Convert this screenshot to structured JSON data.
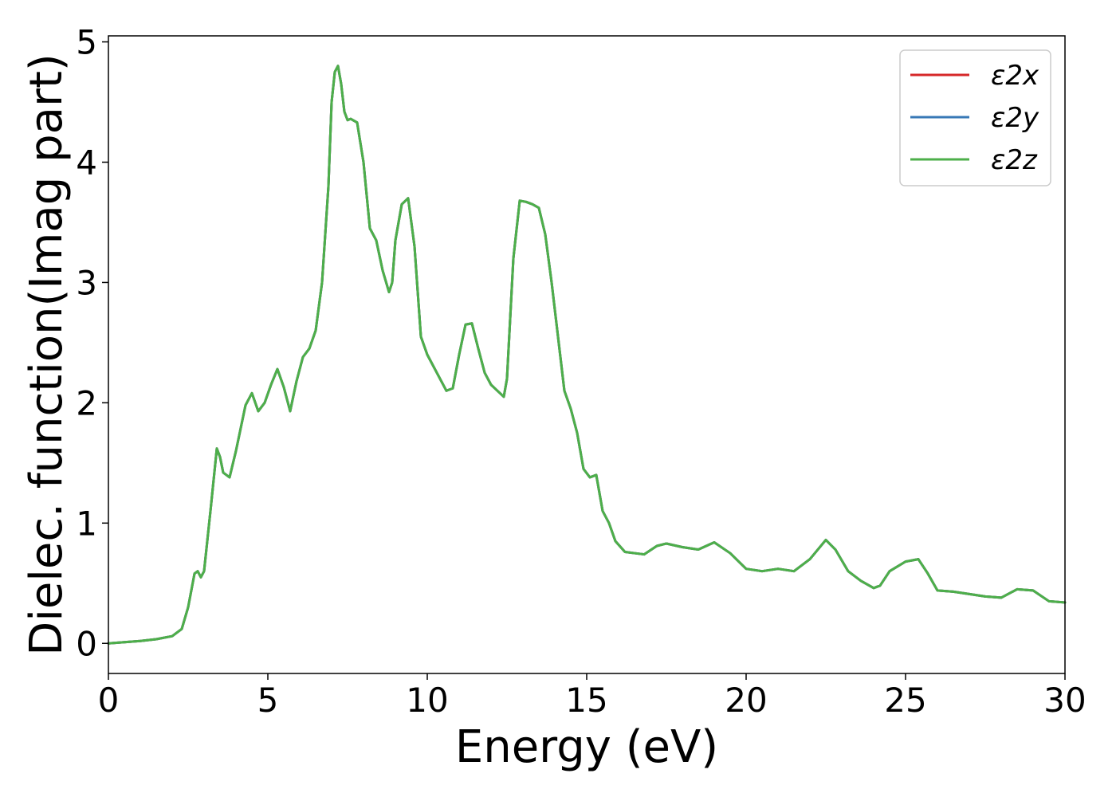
{
  "chart_data": {
    "type": "line",
    "title": "",
    "xlabel": "Energy (eV)",
    "ylabel": "Dielec. function(Imag part)",
    "xlim": [
      0,
      30
    ],
    "ylim": [
      -0.25,
      5.05
    ],
    "xticks": [
      0,
      5,
      10,
      15,
      20,
      25,
      30
    ],
    "yticks": [
      0,
      1,
      2,
      3,
      4,
      5
    ],
    "grid": false,
    "legend_position": "top-right",
    "series": [
      {
        "name": "ε2x",
        "color": "#d62728",
        "x": [
          0,
          1.0,
          1.5,
          2.0,
          2.3,
          2.5,
          2.7,
          2.8,
          2.9,
          3.0,
          3.2,
          3.4,
          3.5,
          3.6,
          3.8,
          4.0,
          4.3,
          4.5,
          4.7,
          4.9,
          5.1,
          5.3,
          5.5,
          5.7,
          5.9,
          6.1,
          6.3,
          6.5,
          6.7,
          6.9,
          7.0,
          7.1,
          7.2,
          7.3,
          7.4,
          7.5,
          7.6,
          7.8,
          8.0,
          8.2,
          8.4,
          8.6,
          8.8,
          8.9,
          9.0,
          9.2,
          9.4,
          9.6,
          9.8,
          10.0,
          10.3,
          10.6,
          10.8,
          11.0,
          11.2,
          11.4,
          11.6,
          11.8,
          12.0,
          12.2,
          12.4,
          12.5,
          12.7,
          12.9,
          13.1,
          13.3,
          13.5,
          13.7,
          13.9,
          14.1,
          14.3,
          14.5,
          14.7,
          14.9,
          15.1,
          15.3,
          15.5,
          15.7,
          15.9,
          16.2,
          16.5,
          16.8,
          17.2,
          17.5,
          18.0,
          18.5,
          19.0,
          19.5,
          20.0,
          20.5,
          21.0,
          21.5,
          22.0,
          22.5,
          22.8,
          23.2,
          23.6,
          24.0,
          24.2,
          24.5,
          25.0,
          25.4,
          25.7,
          26.0,
          26.5,
          27.0,
          27.5,
          28.0,
          28.5,
          29.0,
          29.5,
          30.0
        ],
        "y": [
          0.0,
          0.02,
          0.035,
          0.06,
          0.12,
          0.3,
          0.58,
          0.6,
          0.55,
          0.6,
          1.1,
          1.62,
          1.55,
          1.42,
          1.38,
          1.6,
          1.98,
          2.08,
          1.93,
          2.0,
          2.15,
          2.28,
          2.13,
          1.93,
          2.18,
          2.38,
          2.45,
          2.6,
          3.0,
          3.8,
          4.5,
          4.75,
          4.8,
          4.65,
          4.42,
          4.35,
          4.36,
          4.33,
          4.0,
          3.45,
          3.35,
          3.1,
          2.92,
          3.0,
          3.35,
          3.65,
          3.7,
          3.3,
          2.55,
          2.4,
          2.25,
          2.1,
          2.12,
          2.4,
          2.65,
          2.66,
          2.45,
          2.25,
          2.15,
          2.1,
          2.05,
          2.2,
          3.2,
          3.68,
          3.67,
          3.65,
          3.62,
          3.4,
          3.0,
          2.55,
          2.1,
          1.95,
          1.75,
          1.45,
          1.38,
          1.4,
          1.1,
          1.0,
          0.85,
          0.76,
          0.75,
          0.74,
          0.81,
          0.83,
          0.8,
          0.78,
          0.84,
          0.75,
          0.62,
          0.6,
          0.62,
          0.6,
          0.7,
          0.86,
          0.78,
          0.6,
          0.52,
          0.46,
          0.48,
          0.6,
          0.68,
          0.7,
          0.58,
          0.44,
          0.43,
          0.41,
          0.39,
          0.38,
          0.45,
          0.44,
          0.35,
          0.34
        ]
      },
      {
        "name": "ε2y",
        "color": "#3778b6",
        "x": [
          0,
          1.0,
          1.5,
          2.0,
          2.3,
          2.5,
          2.7,
          2.8,
          2.9,
          3.0,
          3.2,
          3.4,
          3.5,
          3.6,
          3.8,
          4.0,
          4.3,
          4.5,
          4.7,
          4.9,
          5.1,
          5.3,
          5.5,
          5.7,
          5.9,
          6.1,
          6.3,
          6.5,
          6.7,
          6.9,
          7.0,
          7.1,
          7.2,
          7.3,
          7.4,
          7.5,
          7.6,
          7.8,
          8.0,
          8.2,
          8.4,
          8.6,
          8.8,
          8.9,
          9.0,
          9.2,
          9.4,
          9.6,
          9.8,
          10.0,
          10.3,
          10.6,
          10.8,
          11.0,
          11.2,
          11.4,
          11.6,
          11.8,
          12.0,
          12.2,
          12.4,
          12.5,
          12.7,
          12.9,
          13.1,
          13.3,
          13.5,
          13.7,
          13.9,
          14.1,
          14.3,
          14.5,
          14.7,
          14.9,
          15.1,
          15.3,
          15.5,
          15.7,
          15.9,
          16.2,
          16.5,
          16.8,
          17.2,
          17.5,
          18.0,
          18.5,
          19.0,
          19.5,
          20.0,
          20.5,
          21.0,
          21.5,
          22.0,
          22.5,
          22.8,
          23.2,
          23.6,
          24.0,
          24.2,
          24.5,
          25.0,
          25.4,
          25.7,
          26.0,
          26.5,
          27.0,
          27.5,
          28.0,
          28.5,
          29.0,
          29.5,
          30.0
        ],
        "y": [
          0.0,
          0.02,
          0.035,
          0.06,
          0.12,
          0.3,
          0.58,
          0.6,
          0.55,
          0.6,
          1.1,
          1.62,
          1.55,
          1.42,
          1.38,
          1.6,
          1.98,
          2.08,
          1.93,
          2.0,
          2.15,
          2.28,
          2.13,
          1.93,
          2.18,
          2.38,
          2.45,
          2.6,
          3.0,
          3.8,
          4.5,
          4.75,
          4.8,
          4.65,
          4.42,
          4.35,
          4.36,
          4.33,
          4.0,
          3.45,
          3.35,
          3.1,
          2.92,
          3.0,
          3.35,
          3.65,
          3.7,
          3.3,
          2.55,
          2.4,
          2.25,
          2.1,
          2.12,
          2.4,
          2.65,
          2.66,
          2.45,
          2.25,
          2.15,
          2.1,
          2.05,
          2.2,
          3.2,
          3.68,
          3.67,
          3.65,
          3.62,
          3.4,
          3.0,
          2.55,
          2.1,
          1.95,
          1.75,
          1.45,
          1.38,
          1.4,
          1.1,
          1.0,
          0.85,
          0.76,
          0.75,
          0.74,
          0.81,
          0.83,
          0.8,
          0.78,
          0.84,
          0.75,
          0.62,
          0.6,
          0.62,
          0.6,
          0.7,
          0.86,
          0.78,
          0.6,
          0.52,
          0.46,
          0.48,
          0.6,
          0.68,
          0.7,
          0.58,
          0.44,
          0.43,
          0.41,
          0.39,
          0.38,
          0.45,
          0.44,
          0.35,
          0.34
        ]
      },
      {
        "name": "ε2z",
        "color": "#4daf4a",
        "x": [
          0,
          1.0,
          1.5,
          2.0,
          2.3,
          2.5,
          2.7,
          2.8,
          2.9,
          3.0,
          3.2,
          3.4,
          3.5,
          3.6,
          3.8,
          4.0,
          4.3,
          4.5,
          4.7,
          4.9,
          5.1,
          5.3,
          5.5,
          5.7,
          5.9,
          6.1,
          6.3,
          6.5,
          6.7,
          6.9,
          7.0,
          7.1,
          7.2,
          7.3,
          7.4,
          7.5,
          7.6,
          7.8,
          8.0,
          8.2,
          8.4,
          8.6,
          8.8,
          8.9,
          9.0,
          9.2,
          9.4,
          9.6,
          9.8,
          10.0,
          10.3,
          10.6,
          10.8,
          11.0,
          11.2,
          11.4,
          11.6,
          11.8,
          12.0,
          12.2,
          12.4,
          12.5,
          12.7,
          12.9,
          13.1,
          13.3,
          13.5,
          13.7,
          13.9,
          14.1,
          14.3,
          14.5,
          14.7,
          14.9,
          15.1,
          15.3,
          15.5,
          15.7,
          15.9,
          16.2,
          16.5,
          16.8,
          17.2,
          17.5,
          18.0,
          18.5,
          19.0,
          19.5,
          20.0,
          20.5,
          21.0,
          21.5,
          22.0,
          22.5,
          22.8,
          23.2,
          23.6,
          24.0,
          24.2,
          24.5,
          25.0,
          25.4,
          25.7,
          26.0,
          26.5,
          27.0,
          27.5,
          28.0,
          28.5,
          29.0,
          29.5,
          30.0
        ],
        "y": [
          0.0,
          0.02,
          0.035,
          0.06,
          0.12,
          0.3,
          0.58,
          0.6,
          0.55,
          0.6,
          1.1,
          1.62,
          1.55,
          1.42,
          1.38,
          1.6,
          1.98,
          2.08,
          1.93,
          2.0,
          2.15,
          2.28,
          2.13,
          1.93,
          2.18,
          2.38,
          2.45,
          2.6,
          3.0,
          3.8,
          4.5,
          4.75,
          4.8,
          4.65,
          4.42,
          4.35,
          4.36,
          4.33,
          4.0,
          3.45,
          3.35,
          3.1,
          2.92,
          3.0,
          3.35,
          3.65,
          3.7,
          3.3,
          2.55,
          2.4,
          2.25,
          2.1,
          2.12,
          2.4,
          2.65,
          2.66,
          2.45,
          2.25,
          2.15,
          2.1,
          2.05,
          2.2,
          3.2,
          3.68,
          3.67,
          3.65,
          3.62,
          3.4,
          3.0,
          2.55,
          2.1,
          1.95,
          1.75,
          1.45,
          1.38,
          1.4,
          1.1,
          1.0,
          0.85,
          0.76,
          0.75,
          0.74,
          0.81,
          0.83,
          0.8,
          0.78,
          0.84,
          0.75,
          0.62,
          0.6,
          0.62,
          0.6,
          0.7,
          0.86,
          0.78,
          0.6,
          0.52,
          0.46,
          0.48,
          0.6,
          0.68,
          0.7,
          0.58,
          0.44,
          0.43,
          0.41,
          0.39,
          0.38,
          0.45,
          0.44,
          0.35,
          0.34
        ]
      }
    ]
  }
}
